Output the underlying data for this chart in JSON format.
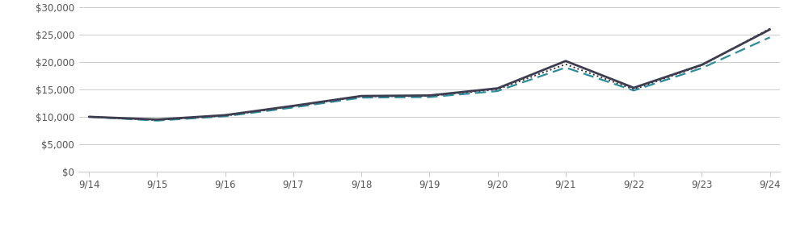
{
  "x_labels": [
    "9/14",
    "9/15",
    "9/16",
    "9/17",
    "9/18",
    "9/19",
    "9/20",
    "9/21",
    "9/22",
    "9/23",
    "9/24"
  ],
  "x_positions": [
    0,
    1,
    2,
    3,
    4,
    5,
    6,
    7,
    8,
    9,
    10
  ],
  "fund_values": [
    10000,
    9500,
    10300,
    12000,
    13800,
    13900,
    15200,
    20200,
    15300,
    19500,
    25962
  ],
  "msci_world_values": [
    10000,
    9400,
    10200,
    11900,
    13700,
    13800,
    15000,
    19600,
    15000,
    19400,
    26114
  ],
  "msci_acwi_values": [
    10000,
    9300,
    10100,
    11700,
    13500,
    13600,
    14700,
    19000,
    14800,
    18900,
    24526
  ],
  "ylim": [
    0,
    30000
  ],
  "yticks": [
    0,
    5000,
    10000,
    15000,
    20000,
    25000,
    30000
  ],
  "fund_color": "#3d3d4f",
  "msci_world_color": "#333333",
  "msci_acwi_color": "#2e8b9a",
  "bg_color": "#ffffff",
  "grid_color": "#cccccc",
  "tick_label_color": "#555555",
  "legend_font_size": 8.5,
  "tick_font_size": 8.5
}
